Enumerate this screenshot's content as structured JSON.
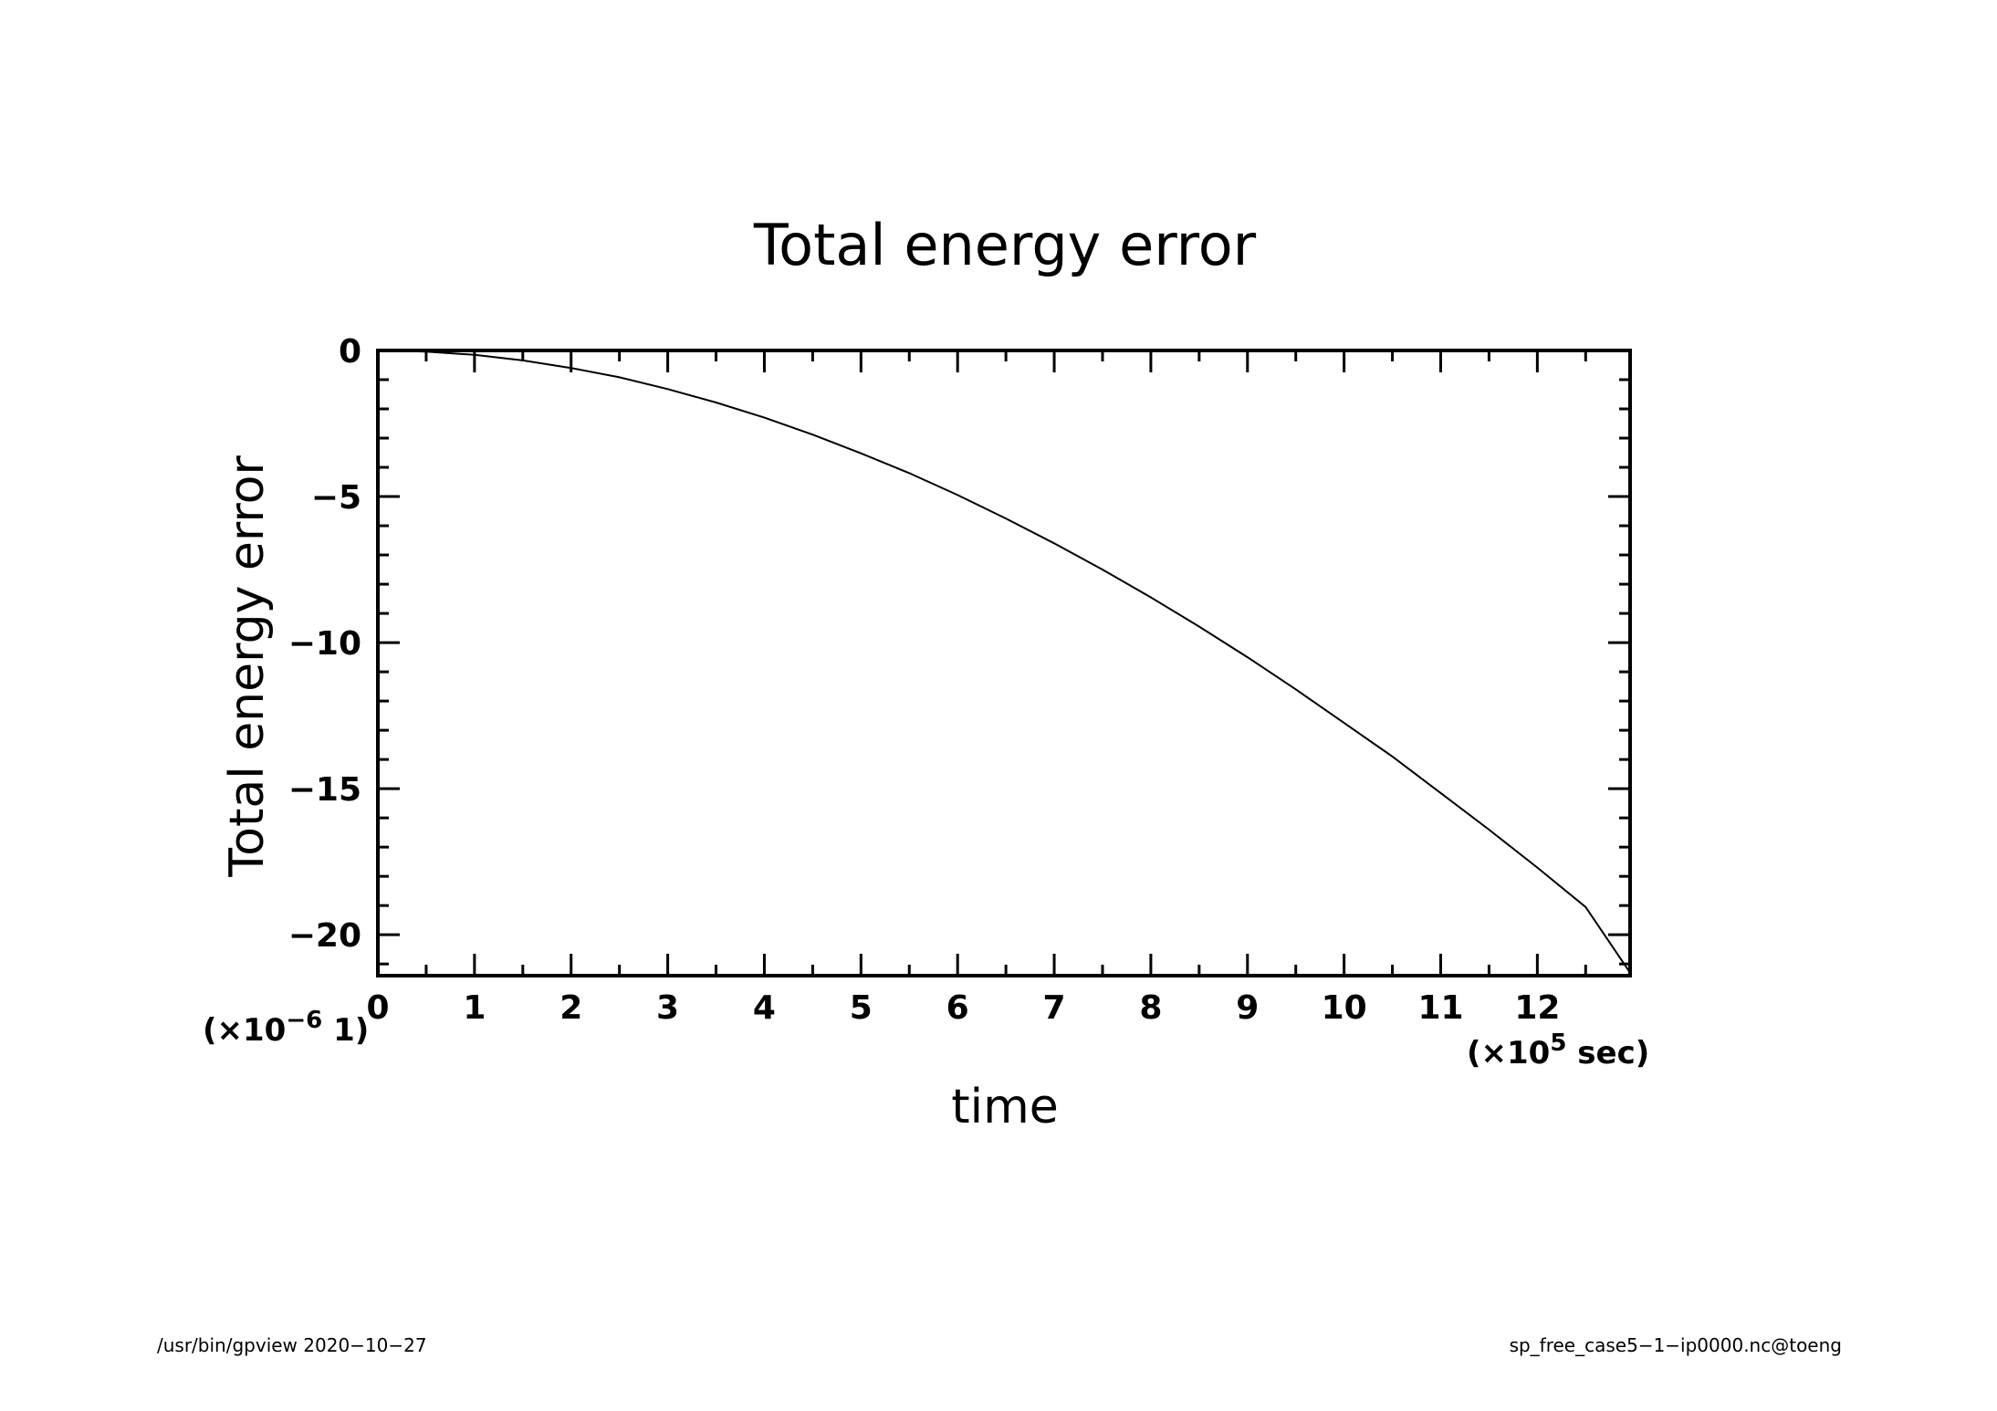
{
  "chart_data": {
    "type": "line",
    "title": "Total energy error",
    "xlabel": "time",
    "ylabel": "Total energy error",
    "x_multiplier_label": {
      "prefix": "(×10",
      "exp": "5",
      "suffix": " sec)"
    },
    "y_multiplier_label": {
      "prefix": "(×10",
      "exp": "−6",
      "suffix": " 1)"
    },
    "xlim": [
      0,
      12.96
    ],
    "ylim": [
      -21.4,
      0
    ],
    "x_ticks": [
      0,
      1,
      2,
      3,
      4,
      5,
      6,
      7,
      8,
      9,
      10,
      11,
      12
    ],
    "x_tick_labels": [
      "0",
      "1",
      "2",
      "3",
      "4",
      "5",
      "6",
      "7",
      "8",
      "9",
      "10",
      "11",
      "12"
    ],
    "x_minor_step": 0.5,
    "y_ticks": [
      0,
      -5,
      -10,
      -15,
      -20
    ],
    "y_tick_labels": [
      "0",
      "−5",
      "−10",
      "−15",
      "−20"
    ],
    "y_minor_step": 1,
    "grid": false,
    "series": [
      {
        "x": [
          0,
          0.5,
          1,
          1.5,
          2,
          2.5,
          3,
          3.5,
          4,
          4.5,
          5,
          5.5,
          6,
          6.5,
          7,
          7.5,
          8,
          8.5,
          9,
          9.5,
          10,
          10.5,
          11,
          11.5,
          12,
          12.5,
          12.96
        ],
        "values": [
          0,
          -0.04,
          -0.15,
          -0.34,
          -0.6,
          -0.92,
          -1.32,
          -1.78,
          -2.3,
          -2.88,
          -3.52,
          -4.2,
          -4.95,
          -5.75,
          -6.6,
          -7.5,
          -8.45,
          -9.45,
          -10.5,
          -11.6,
          -12.75,
          -13.9,
          -15.15,
          -16.4,
          -17.7,
          -19.05,
          -21.3
        ]
      }
    ]
  },
  "footer": {
    "left": "/usr/bin/gpview   2020−10−27",
    "right": "sp_free_case5−1−ip0000.nc@toeng"
  }
}
